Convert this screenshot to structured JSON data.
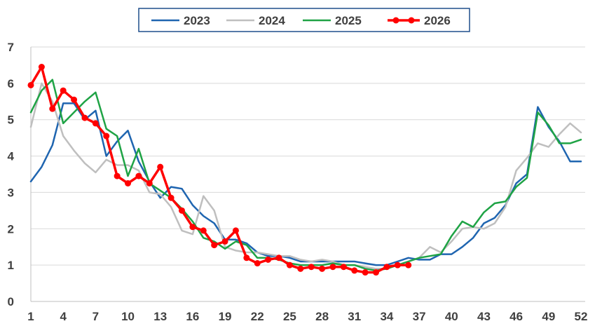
{
  "chart_data": {
    "type": "line",
    "title": "",
    "xlabel": "",
    "ylabel": "",
    "xlim": [
      1,
      52
    ],
    "ylim": [
      0,
      7
    ],
    "x_ticks": [
      1,
      4,
      7,
      10,
      13,
      16,
      19,
      22,
      25,
      28,
      31,
      34,
      37,
      40,
      43,
      46,
      49,
      52
    ],
    "y_ticks": [
      0,
      1,
      2,
      3,
      4,
      5,
      6,
      7
    ],
    "grid": "horizontal",
    "legend_position": "top",
    "series": [
      {
        "name": "2023",
        "color": "#1f65b0",
        "markers": false,
        "x": [
          1,
          2,
          3,
          4,
          5,
          6,
          7,
          8,
          9,
          10,
          11,
          12,
          13,
          14,
          15,
          16,
          17,
          18,
          19,
          20,
          21,
          22,
          23,
          24,
          25,
          26,
          27,
          28,
          29,
          30,
          31,
          32,
          33,
          34,
          35,
          36,
          37,
          38,
          39,
          40,
          41,
          42,
          43,
          44,
          45,
          46,
          47,
          48,
          49,
          50,
          51,
          52
        ],
        "values": [
          3.3,
          3.7,
          4.3,
          5.45,
          5.45,
          5.0,
          5.25,
          4.0,
          4.4,
          4.7,
          3.85,
          3.3,
          2.85,
          3.15,
          3.1,
          2.65,
          2.35,
          2.15,
          1.7,
          1.7,
          1.6,
          1.35,
          1.25,
          1.25,
          1.2,
          1.1,
          1.1,
          1.1,
          1.1,
          1.1,
          1.1,
          1.05,
          1.0,
          1.0,
          1.1,
          1.2,
          1.15,
          1.15,
          1.3,
          1.3,
          1.5,
          1.75,
          2.15,
          2.3,
          2.65,
          3.25,
          3.5,
          5.35,
          4.8,
          4.4,
          3.85,
          3.85
        ]
      },
      {
        "name": "2024",
        "color": "#bfbfbf",
        "markers": false,
        "x": [
          1,
          2,
          3,
          4,
          5,
          6,
          7,
          8,
          9,
          10,
          11,
          12,
          13,
          14,
          15,
          16,
          17,
          18,
          19,
          20,
          21,
          22,
          23,
          24,
          25,
          26,
          27,
          28,
          29,
          30,
          31,
          32,
          33,
          34,
          35,
          36,
          37,
          38,
          39,
          40,
          41,
          42,
          43,
          44,
          45,
          46,
          47,
          48,
          49,
          50,
          51,
          52
        ],
        "values": [
          4.8,
          6.0,
          5.5,
          4.55,
          4.15,
          3.8,
          3.55,
          3.9,
          3.75,
          3.75,
          3.6,
          3.0,
          2.95,
          2.6,
          1.95,
          1.85,
          2.9,
          2.5,
          1.5,
          1.4,
          1.35,
          1.35,
          1.3,
          1.25,
          1.25,
          1.15,
          1.1,
          1.15,
          1.1,
          1.0,
          1.0,
          0.95,
          0.9,
          0.9,
          1.0,
          1.1,
          1.2,
          1.5,
          1.35,
          1.65,
          2.0,
          2.05,
          2.0,
          2.15,
          2.6,
          3.6,
          3.95,
          4.35,
          4.25,
          4.6,
          4.9,
          4.65
        ]
      },
      {
        "name": "2025",
        "color": "#1fa345",
        "markers": false,
        "x": [
          1,
          2,
          3,
          4,
          5,
          6,
          7,
          8,
          9,
          10,
          11,
          12,
          13,
          14,
          15,
          16,
          17,
          18,
          19,
          20,
          21,
          22,
          23,
          24,
          25,
          26,
          27,
          28,
          29,
          30,
          31,
          32,
          33,
          34,
          35,
          36,
          37,
          38,
          39,
          40,
          41,
          42,
          43,
          44,
          45,
          46,
          47,
          48,
          49,
          50,
          51,
          52
        ],
        "values": [
          5.2,
          5.8,
          6.1,
          4.9,
          5.2,
          5.5,
          5.75,
          4.75,
          4.55,
          3.45,
          4.2,
          3.25,
          3.05,
          2.85,
          2.55,
          2.2,
          1.75,
          1.65,
          1.45,
          1.65,
          1.55,
          1.2,
          1.2,
          1.15,
          1.05,
          1.0,
          1.0,
          1.0,
          1.05,
          1.0,
          1.0,
          0.9,
          0.85,
          0.9,
          1.0,
          1.1,
          1.2,
          1.25,
          1.3,
          1.8,
          2.2,
          2.05,
          2.45,
          2.7,
          2.75,
          3.15,
          3.4,
          5.2,
          4.85,
          4.35,
          4.35,
          4.45
        ]
      },
      {
        "name": "2026",
        "color": "#ff0000",
        "markers": true,
        "x": [
          1,
          2,
          3,
          4,
          5,
          6,
          7,
          8,
          9,
          10,
          11,
          12,
          13,
          14,
          15,
          16,
          17,
          18,
          19,
          20,
          21,
          22,
          23,
          24,
          25,
          26,
          27,
          28,
          29,
          30,
          31,
          32,
          33,
          34,
          35,
          36
        ],
        "values": [
          5.95,
          6.45,
          5.3,
          5.8,
          5.55,
          5.05,
          4.9,
          4.55,
          3.45,
          3.25,
          3.45,
          3.25,
          3.7,
          2.85,
          2.5,
          2.05,
          1.95,
          1.55,
          1.65,
          1.95,
          1.2,
          1.05,
          1.15,
          1.2,
          1.0,
          0.9,
          0.95,
          0.9,
          0.95,
          0.95,
          0.85,
          0.8,
          0.8,
          0.95,
          1.0,
          1.0
        ]
      }
    ]
  }
}
